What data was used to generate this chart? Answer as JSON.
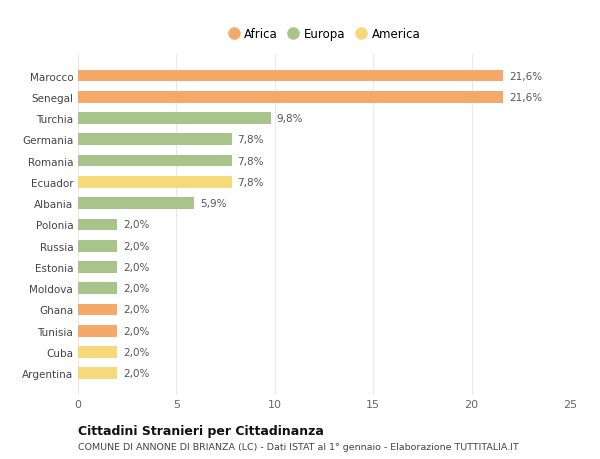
{
  "categories": [
    "Marocco",
    "Senegal",
    "Turchia",
    "Germania",
    "Romania",
    "Ecuador",
    "Albania",
    "Polonia",
    "Russia",
    "Estonia",
    "Moldova",
    "Ghana",
    "Tunisia",
    "Cuba",
    "Argentina"
  ],
  "values": [
    21.6,
    21.6,
    9.8,
    7.8,
    7.8,
    7.8,
    5.9,
    2.0,
    2.0,
    2.0,
    2.0,
    2.0,
    2.0,
    2.0,
    2.0
  ],
  "colors": [
    "#F4A96A",
    "#F4A96A",
    "#A8C48A",
    "#A8C48A",
    "#A8C48A",
    "#F5D97A",
    "#A8C48A",
    "#A8C48A",
    "#A8C48A",
    "#A8C48A",
    "#A8C48A",
    "#F4A96A",
    "#F4A96A",
    "#F5D97A",
    "#F5D97A"
  ],
  "labels": [
    "21,6%",
    "21,6%",
    "9,8%",
    "7,8%",
    "7,8%",
    "7,8%",
    "5,9%",
    "2,0%",
    "2,0%",
    "2,0%",
    "2,0%",
    "2,0%",
    "2,0%",
    "2,0%",
    "2,0%"
  ],
  "legend_items": [
    {
      "label": "Africa",
      "color": "#F4A96A"
    },
    {
      "label": "Europa",
      "color": "#A8C48A"
    },
    {
      "label": "America",
      "color": "#F5D97A"
    }
  ],
  "xlim": [
    0,
    25
  ],
  "xticks": [
    0,
    5,
    10,
    15,
    20,
    25
  ],
  "title": "Cittadini Stranieri per Cittadinanza",
  "subtitle": "COMUNE DI ANNONE DI BRIANZA (LC) - Dati ISTAT al 1° gennaio - Elaborazione TUTTITALIA.IT",
  "background_color": "#ffffff",
  "grid_color": "#e8e8e8"
}
